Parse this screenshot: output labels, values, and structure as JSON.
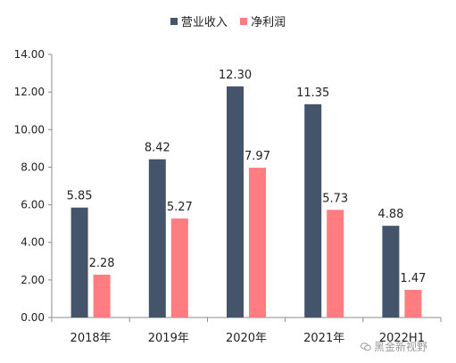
{
  "chart_data": {
    "type": "bar",
    "categories": [
      "2018年",
      "2019年",
      "2020年",
      "2021年",
      "2022H1"
    ],
    "series": [
      {
        "name": "营业收入",
        "values": [
          5.85,
          8.42,
          12.3,
          11.35,
          4.88
        ],
        "labels": [
          "5.85",
          "8.42",
          "12.30",
          "11.35",
          "4.88"
        ],
        "color": "#44546A"
      },
      {
        "name": "净利润",
        "values": [
          2.28,
          5.27,
          7.97,
          5.73,
          1.47
        ],
        "labels": [
          "2.28",
          "5.27",
          "7.97",
          "5.73",
          "1.47"
        ],
        "color": "#FF7C80"
      }
    ],
    "ylim": [
      0,
      14
    ],
    "yticks": [
      "0.00",
      "2.00",
      "4.00",
      "6.00",
      "8.00",
      "10.00",
      "12.00",
      "14.00"
    ],
    "grid": false,
    "legend": "top-center"
  },
  "watermark": {
    "text": "黑金新视野",
    "icon": "wechat-icon"
  }
}
